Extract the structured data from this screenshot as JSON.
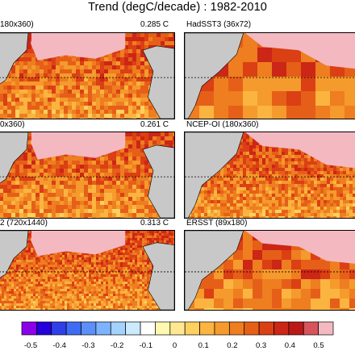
{
  "title": "Trend (degC/decade) : 1982-2010",
  "chart_data": {
    "type": "heatmap",
    "title": "Trend (degC/decade) : 1982-2010",
    "panels": [
      {
        "name": "180x360)",
        "value": "0.285 C",
        "column": "left",
        "row": 0
      },
      {
        "name": "HadSST3 (36x72)",
        "value": "",
        "column": "right",
        "row": 0
      },
      {
        "name": "0x360)",
        "value": "0.261 C",
        "column": "left",
        "row": 1
      },
      {
        "name": "NCEP-OI (180x360)",
        "value": "",
        "column": "right",
        "row": 1
      },
      {
        "name": "2 (720x1440)",
        "value": "0.313 C",
        "column": "left",
        "row": 2
      },
      {
        "name": "ERSST (89x180)",
        "value": "",
        "column": "right",
        "row": 2
      }
    ],
    "colorbar": {
      "tick_labels": [
        "-0.5",
        "-0.4",
        "-0.3",
        "-0.2",
        "-0.1",
        "0",
        "0.1",
        "0.2",
        "0.3",
        "0.4",
        "0.5"
      ],
      "range": [
        -0.5,
        0.5
      ],
      "colors": [
        "#8c00e8",
        "#2400dc",
        "#2f40e8",
        "#3f6cf4",
        "#5c8ff8",
        "#7db3fc",
        "#a3d2fc",
        "#cbeafc",
        "#ffffff",
        "#fff8b0",
        "#ffe890",
        "#fdd060",
        "#fbb440",
        "#f59a2c",
        "#ee7e20",
        "#e65f18",
        "#db3f14",
        "#cc2616",
        "#bb1818",
        "#d8545c",
        "#f4b8c0"
      ]
    }
  }
}
